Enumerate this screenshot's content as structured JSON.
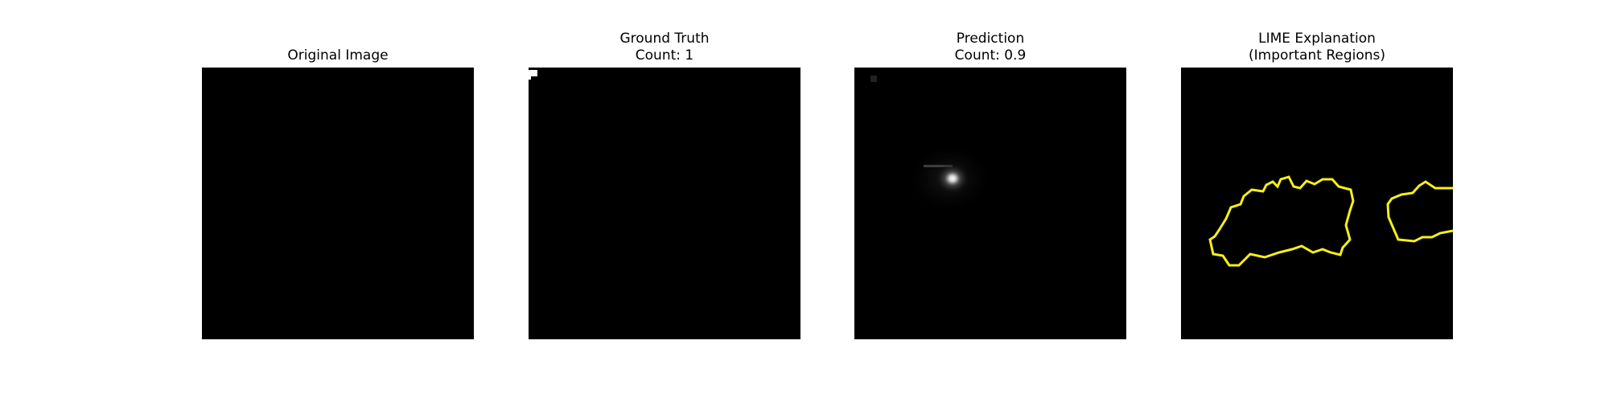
{
  "panels": [
    {
      "title_lines": [
        "Original Image"
      ],
      "image": "all-black input image"
    },
    {
      "title_lines": [
        "Ground Truth",
        "Count: 1"
      ],
      "image": "black density map with small white corner mark"
    },
    {
      "title_lines": [
        "Prediction",
        "Count: 0.9"
      ],
      "image": "black density map with single glowing blob"
    },
    {
      "title_lines": [
        "LIME Explanation",
        "(Important Regions)"
      ],
      "image": "black image with yellow region boundaries"
    }
  ],
  "colors": {
    "background": "#ffffff",
    "image_bg": "#000000",
    "lime_boundary": "#f7ef1a"
  }
}
